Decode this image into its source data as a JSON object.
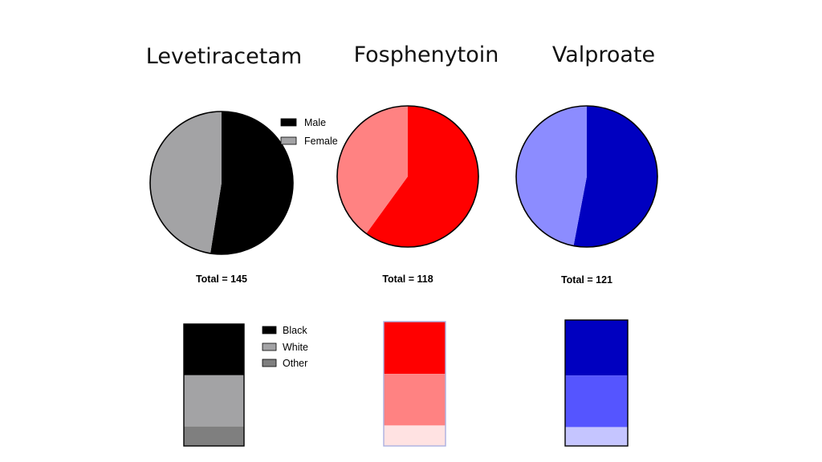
{
  "chart_data": [
    {
      "type": "pie",
      "title": "Levetiracetam",
      "total_label": "Total = 145",
      "categories": [
        "Male",
        "Female"
      ],
      "values": [
        52.5,
        47.5
      ],
      "colors": [
        "#000000",
        "#a3a3a5"
      ],
      "legend": {
        "placement": "right",
        "entries": [
          "Male",
          "Female"
        ],
        "colors": [
          "#000000",
          "#a3a3a5"
        ]
      }
    },
    {
      "type": "pie",
      "title": "Fosphenytoin",
      "total_label": "Total = 118",
      "categories": [
        "Male",
        "Female"
      ],
      "values": [
        60,
        40
      ],
      "colors": [
        "#ff0000",
        "#ff8282"
      ]
    },
    {
      "type": "pie",
      "title": "Valproate",
      "total_label": "Total = 121",
      "categories": [
        "Male",
        "Female"
      ],
      "values": [
        53,
        47
      ],
      "colors": [
        "#0000c0",
        "#8c8cff"
      ]
    },
    {
      "type": "bar",
      "stacked": true,
      "categories": [
        "Black",
        "White",
        "Other"
      ],
      "values": [
        42,
        42,
        16
      ],
      "colors": [
        "#000000",
        "#a3a3a5",
        "#7f7f7f"
      ],
      "legend": {
        "placement": "right",
        "entries": [
          "Black",
          "White",
          "Other"
        ],
        "colors": [
          "#000000",
          "#a3a3a5",
          "#7f7f7f"
        ]
      }
    },
    {
      "type": "bar",
      "stacked": true,
      "categories": [
        "Black",
        "White",
        "Other"
      ],
      "values": [
        42,
        41.5,
        16.5
      ],
      "colors": [
        "#ff0000",
        "#ff8282",
        "#ffe2e2"
      ]
    },
    {
      "type": "bar",
      "stacked": true,
      "categories": [
        "Black",
        "White",
        "Other"
      ],
      "values": [
        44,
        41,
        15
      ],
      "colors": [
        "#0000c0",
        "#5555ff",
        "#c5c5ff"
      ]
    }
  ]
}
